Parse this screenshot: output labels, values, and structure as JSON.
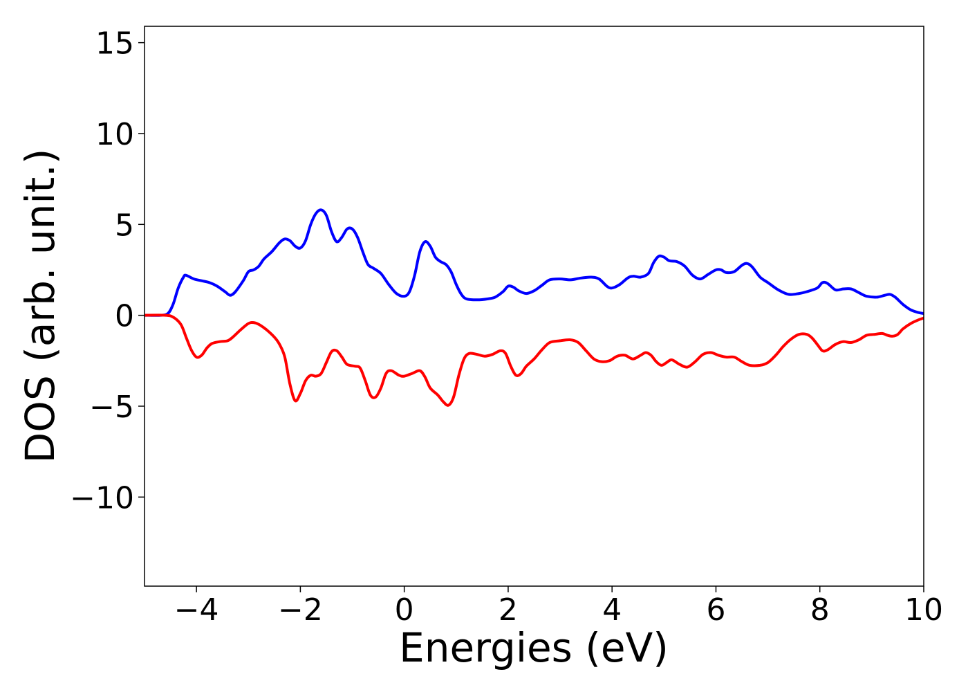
{
  "chart_data": {
    "type": "line",
    "xlabel": "Energies (eV)",
    "ylabel": "DOS (arb. unit.)",
    "xlim": [
      -5,
      10
    ],
    "ylim": [
      -14.9,
      15.9
    ],
    "x_ticks": [
      -4,
      -2,
      0,
      2,
      4,
      6,
      8,
      10
    ],
    "x_tick_labels": [
      "−4",
      "−2",
      "0",
      "2",
      "4",
      "6",
      "8",
      "10"
    ],
    "y_ticks": [
      -10,
      -5,
      0,
      5,
      10,
      15
    ],
    "y_tick_labels": [
      "−10",
      "−5",
      "0",
      "5",
      "10",
      "15"
    ],
    "grid": false,
    "series": [
      {
        "color": "#0000ff",
        "points": [
          [
            -5.0,
            0.0
          ],
          [
            -4.7,
            0.0
          ],
          [
            -4.55,
            0.1
          ],
          [
            -4.45,
            0.6
          ],
          [
            -4.35,
            1.5
          ],
          [
            -4.25,
            2.1
          ],
          [
            -4.2,
            2.2
          ],
          [
            -4.05,
            2.0
          ],
          [
            -3.9,
            1.9
          ],
          [
            -3.75,
            1.8
          ],
          [
            -3.6,
            1.6
          ],
          [
            -3.45,
            1.3
          ],
          [
            -3.35,
            1.1
          ],
          [
            -3.25,
            1.3
          ],
          [
            -3.1,
            1.9
          ],
          [
            -3.0,
            2.4
          ],
          [
            -2.9,
            2.5
          ],
          [
            -2.8,
            2.7
          ],
          [
            -2.7,
            3.1
          ],
          [
            -2.55,
            3.5
          ],
          [
            -2.4,
            4.0
          ],
          [
            -2.3,
            4.2
          ],
          [
            -2.2,
            4.1
          ],
          [
            -2.1,
            3.8
          ],
          [
            -2.0,
            3.7
          ],
          [
            -1.9,
            4.1
          ],
          [
            -1.8,
            5.0
          ],
          [
            -1.7,
            5.6
          ],
          [
            -1.6,
            5.8
          ],
          [
            -1.5,
            5.5
          ],
          [
            -1.4,
            4.6
          ],
          [
            -1.3,
            4.05
          ],
          [
            -1.2,
            4.3
          ],
          [
            -1.1,
            4.75
          ],
          [
            -1.0,
            4.75
          ],
          [
            -0.9,
            4.3
          ],
          [
            -0.8,
            3.5
          ],
          [
            -0.7,
            2.8
          ],
          [
            -0.6,
            2.6
          ],
          [
            -0.45,
            2.3
          ],
          [
            -0.3,
            1.7
          ],
          [
            -0.15,
            1.2
          ],
          [
            0.0,
            1.05
          ],
          [
            0.1,
            1.3
          ],
          [
            0.2,
            2.2
          ],
          [
            0.3,
            3.5
          ],
          [
            0.4,
            4.05
          ],
          [
            0.5,
            3.8
          ],
          [
            0.6,
            3.2
          ],
          [
            0.7,
            2.95
          ],
          [
            0.8,
            2.8
          ],
          [
            0.9,
            2.4
          ],
          [
            1.0,
            1.7
          ],
          [
            1.1,
            1.15
          ],
          [
            1.2,
            0.9
          ],
          [
            1.4,
            0.85
          ],
          [
            1.6,
            0.9
          ],
          [
            1.75,
            1.0
          ],
          [
            1.9,
            1.3
          ],
          [
            2.0,
            1.6
          ],
          [
            2.1,
            1.55
          ],
          [
            2.2,
            1.35
          ],
          [
            2.35,
            1.2
          ],
          [
            2.5,
            1.35
          ],
          [
            2.65,
            1.65
          ],
          [
            2.8,
            1.95
          ],
          [
            3.0,
            2.0
          ],
          [
            3.2,
            1.95
          ],
          [
            3.4,
            2.05
          ],
          [
            3.6,
            2.1
          ],
          [
            3.75,
            2.0
          ],
          [
            3.9,
            1.6
          ],
          [
            4.0,
            1.5
          ],
          [
            4.15,
            1.7
          ],
          [
            4.3,
            2.05
          ],
          [
            4.4,
            2.15
          ],
          [
            4.55,
            2.1
          ],
          [
            4.7,
            2.3
          ],
          [
            4.8,
            2.9
          ],
          [
            4.9,
            3.25
          ],
          [
            5.0,
            3.2
          ],
          [
            5.1,
            3.0
          ],
          [
            5.25,
            2.95
          ],
          [
            5.4,
            2.7
          ],
          [
            5.55,
            2.2
          ],
          [
            5.7,
            2.0
          ],
          [
            5.85,
            2.25
          ],
          [
            6.0,
            2.5
          ],
          [
            6.1,
            2.5
          ],
          [
            6.2,
            2.35
          ],
          [
            6.35,
            2.4
          ],
          [
            6.5,
            2.75
          ],
          [
            6.6,
            2.85
          ],
          [
            6.7,
            2.65
          ],
          [
            6.85,
            2.1
          ],
          [
            7.0,
            1.8
          ],
          [
            7.2,
            1.4
          ],
          [
            7.4,
            1.15
          ],
          [
            7.6,
            1.2
          ],
          [
            7.75,
            1.3
          ],
          [
            7.95,
            1.5
          ],
          [
            8.05,
            1.8
          ],
          [
            8.15,
            1.75
          ],
          [
            8.3,
            1.4
          ],
          [
            8.45,
            1.45
          ],
          [
            8.6,
            1.45
          ],
          [
            8.75,
            1.25
          ],
          [
            8.9,
            1.05
          ],
          [
            9.1,
            1.0
          ],
          [
            9.25,
            1.1
          ],
          [
            9.35,
            1.15
          ],
          [
            9.45,
            1.0
          ],
          [
            9.6,
            0.6
          ],
          [
            9.75,
            0.3
          ],
          [
            9.9,
            0.15
          ],
          [
            10.0,
            0.1
          ]
        ]
      },
      {
        "color": "#ff0000",
        "points": [
          [
            -5.0,
            0.0
          ],
          [
            -4.6,
            0.0
          ],
          [
            -4.45,
            -0.1
          ],
          [
            -4.3,
            -0.5
          ],
          [
            -4.2,
            -1.2
          ],
          [
            -4.1,
            -1.9
          ],
          [
            -4.0,
            -2.3
          ],
          [
            -3.9,
            -2.2
          ],
          [
            -3.8,
            -1.8
          ],
          [
            -3.7,
            -1.55
          ],
          [
            -3.55,
            -1.45
          ],
          [
            -3.4,
            -1.4
          ],
          [
            -3.3,
            -1.2
          ],
          [
            -3.15,
            -0.8
          ],
          [
            -3.0,
            -0.45
          ],
          [
            -2.9,
            -0.4
          ],
          [
            -2.8,
            -0.5
          ],
          [
            -2.65,
            -0.8
          ],
          [
            -2.5,
            -1.2
          ],
          [
            -2.4,
            -1.6
          ],
          [
            -2.3,
            -2.3
          ],
          [
            -2.2,
            -3.8
          ],
          [
            -2.1,
            -4.7
          ],
          [
            -2.0,
            -4.3
          ],
          [
            -1.9,
            -3.6
          ],
          [
            -1.8,
            -3.3
          ],
          [
            -1.7,
            -3.35
          ],
          [
            -1.6,
            -3.2
          ],
          [
            -1.5,
            -2.6
          ],
          [
            -1.4,
            -2.0
          ],
          [
            -1.3,
            -1.95
          ],
          [
            -1.2,
            -2.3
          ],
          [
            -1.1,
            -2.7
          ],
          [
            -0.95,
            -2.8
          ],
          [
            -0.85,
            -2.9
          ],
          [
            -0.75,
            -3.6
          ],
          [
            -0.65,
            -4.4
          ],
          [
            -0.55,
            -4.5
          ],
          [
            -0.45,
            -4.0
          ],
          [
            -0.35,
            -3.2
          ],
          [
            -0.25,
            -3.05
          ],
          [
            -0.1,
            -3.3
          ],
          [
            0.0,
            -3.35
          ],
          [
            0.15,
            -3.2
          ],
          [
            0.3,
            -3.05
          ],
          [
            0.4,
            -3.4
          ],
          [
            0.5,
            -4.0
          ],
          [
            0.65,
            -4.4
          ],
          [
            0.75,
            -4.75
          ],
          [
            0.85,
            -4.95
          ],
          [
            0.95,
            -4.5
          ],
          [
            1.05,
            -3.3
          ],
          [
            1.15,
            -2.4
          ],
          [
            1.25,
            -2.1
          ],
          [
            1.4,
            -2.15
          ],
          [
            1.55,
            -2.25
          ],
          [
            1.7,
            -2.15
          ],
          [
            1.85,
            -1.95
          ],
          [
            1.95,
            -2.1
          ],
          [
            2.05,
            -2.8
          ],
          [
            2.15,
            -3.3
          ],
          [
            2.25,
            -3.2
          ],
          [
            2.35,
            -2.8
          ],
          [
            2.5,
            -2.4
          ],
          [
            2.65,
            -1.9
          ],
          [
            2.8,
            -1.5
          ],
          [
            3.0,
            -1.4
          ],
          [
            3.2,
            -1.35
          ],
          [
            3.35,
            -1.5
          ],
          [
            3.5,
            -1.95
          ],
          [
            3.65,
            -2.4
          ],
          [
            3.8,
            -2.55
          ],
          [
            3.95,
            -2.5
          ],
          [
            4.1,
            -2.25
          ],
          [
            4.25,
            -2.2
          ],
          [
            4.4,
            -2.4
          ],
          [
            4.55,
            -2.2
          ],
          [
            4.65,
            -2.05
          ],
          [
            4.75,
            -2.2
          ],
          [
            4.85,
            -2.55
          ],
          [
            4.95,
            -2.75
          ],
          [
            5.05,
            -2.6
          ],
          [
            5.15,
            -2.45
          ],
          [
            5.3,
            -2.7
          ],
          [
            5.45,
            -2.85
          ],
          [
            5.6,
            -2.55
          ],
          [
            5.75,
            -2.15
          ],
          [
            5.9,
            -2.05
          ],
          [
            6.05,
            -2.2
          ],
          [
            6.2,
            -2.3
          ],
          [
            6.35,
            -2.3
          ],
          [
            6.5,
            -2.55
          ],
          [
            6.65,
            -2.75
          ],
          [
            6.85,
            -2.75
          ],
          [
            7.0,
            -2.6
          ],
          [
            7.15,
            -2.2
          ],
          [
            7.3,
            -1.7
          ],
          [
            7.45,
            -1.3
          ],
          [
            7.6,
            -1.05
          ],
          [
            7.75,
            -1.05
          ],
          [
            7.85,
            -1.25
          ],
          [
            7.95,
            -1.6
          ],
          [
            8.05,
            -1.95
          ],
          [
            8.15,
            -1.9
          ],
          [
            8.3,
            -1.6
          ],
          [
            8.45,
            -1.45
          ],
          [
            8.6,
            -1.5
          ],
          [
            8.75,
            -1.35
          ],
          [
            8.9,
            -1.1
          ],
          [
            9.05,
            -1.05
          ],
          [
            9.2,
            -1.0
          ],
          [
            9.3,
            -1.1
          ],
          [
            9.4,
            -1.15
          ],
          [
            9.5,
            -1.05
          ],
          [
            9.6,
            -0.75
          ],
          [
            9.75,
            -0.45
          ],
          [
            9.9,
            -0.25
          ],
          [
            10.0,
            -0.15
          ]
        ]
      }
    ]
  }
}
